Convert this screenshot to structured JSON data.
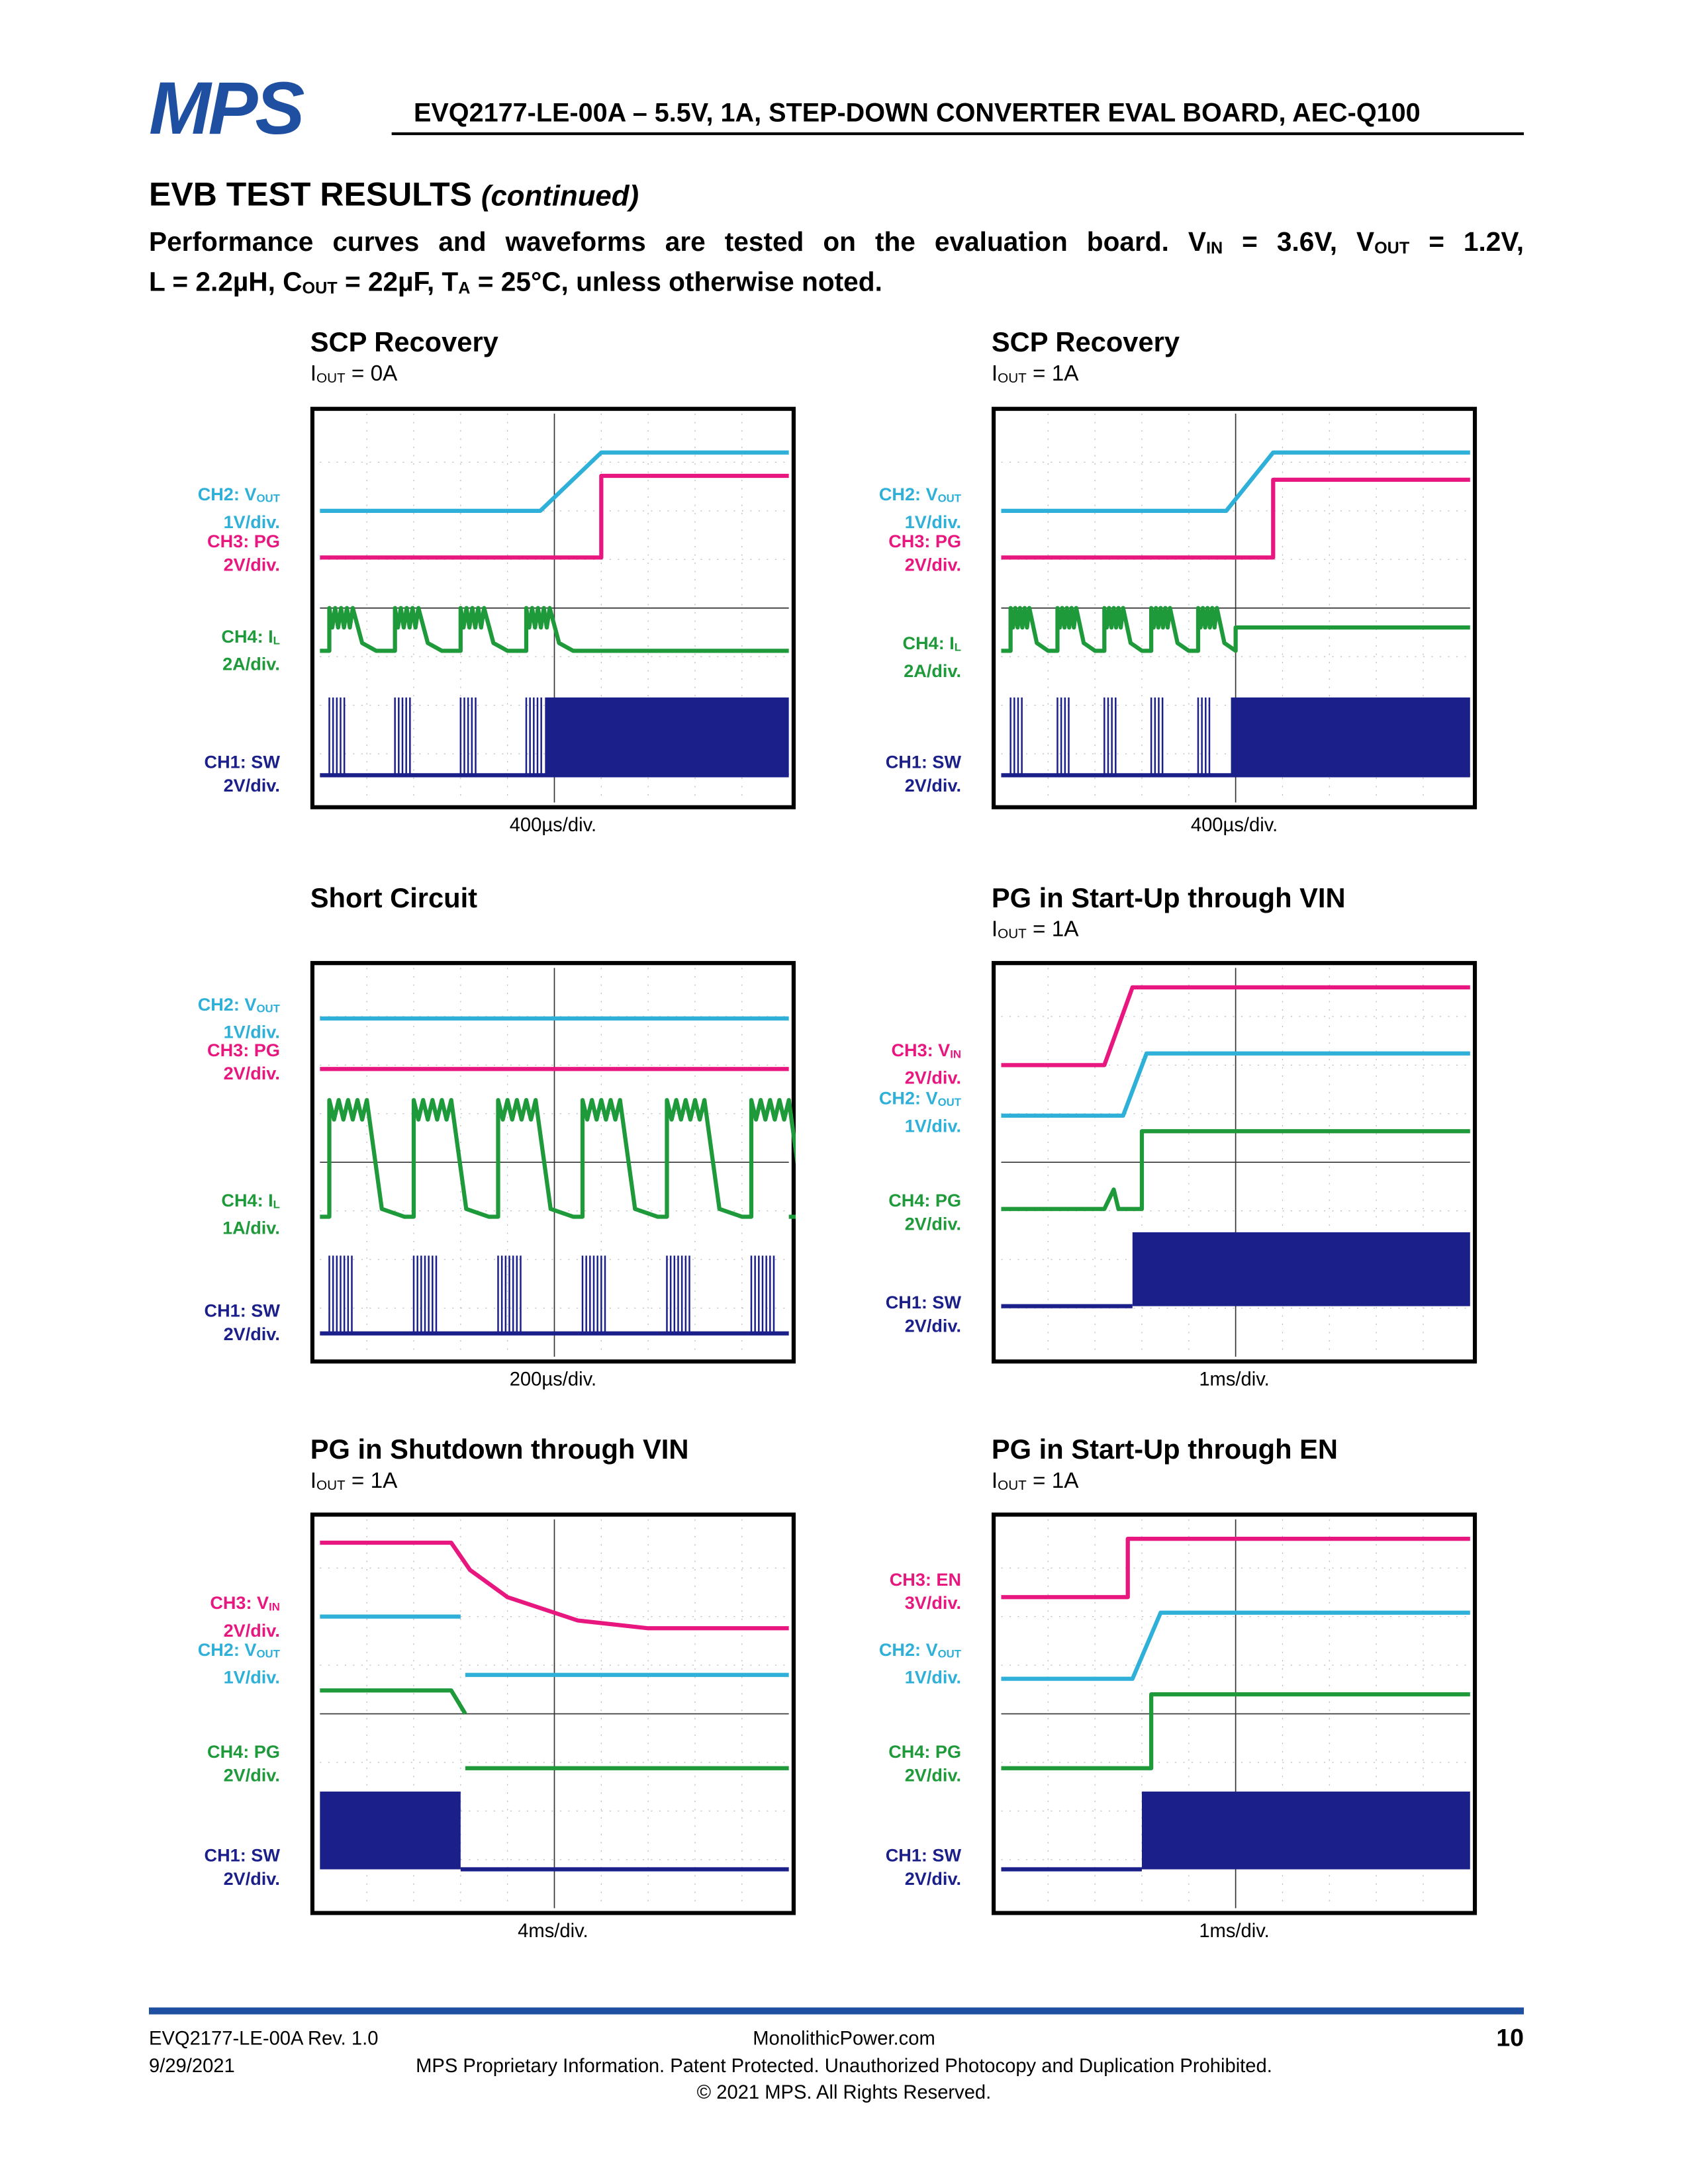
{
  "header": {
    "logo": "MPS",
    "title": "EVQ2177-LE-00A – 5.5V, 1A, STEP-DOWN CONVERTER EVAL BOARD, AEC-Q100"
  },
  "section": {
    "title": "EVB TEST RESULTS",
    "note": "(continued)"
  },
  "intro": {
    "lines": [
      [
        {
          "text": "Performance curves and waveforms are tested on the evaluation board. V"
        },
        {
          "sub": "IN"
        },
        {
          "text": " = 3.6V, V"
        },
        {
          "sub": "OUT"
        },
        {
          "text": " = 1.2V,"
        }
      ],
      [
        {
          "text": "L = 2.2µH, C"
        },
        {
          "sub": "OUT"
        },
        {
          "text": " = 22µF, T"
        },
        {
          "sub": "A"
        },
        {
          "text": " = 25°C, unless otherwise noted."
        }
      ]
    ]
  },
  "plots": [
    {
      "title": "SCP Recovery",
      "condition": [
        {
          "text": "I"
        },
        {
          "sub": "OUT"
        },
        {
          "text": " = 0A"
        }
      ],
      "timebase": "400µs/div.",
      "channels": [
        {
          "name": [
            {
              "text": "CH2: V"
            },
            {
              "sub": "OUT"
            }
          ],
          "scale": "1V/div.",
          "color": "#2fb0d8"
        },
        {
          "name": [
            {
              "text": "CH3: PG"
            }
          ],
          "scale": "2V/div.",
          "color": "#e8177f"
        },
        {
          "name": [
            {
              "text": "CH4: I"
            },
            {
              "sub": "L"
            }
          ],
          "scale": "2A/div.",
          "color": "#1e9a3a"
        },
        {
          "name": [
            {
              "text": "CH1: SW"
            }
          ],
          "scale": "2V/div.",
          "color": "#1b1f8a"
        }
      ]
    },
    {
      "title": "SCP Recovery",
      "condition": [
        {
          "text": "I"
        },
        {
          "sub": "OUT"
        },
        {
          "text": " = 1A"
        }
      ],
      "timebase": "400µs/div.",
      "channels": [
        {
          "name": [
            {
              "text": "CH2: V"
            },
            {
              "sub": "OUT"
            }
          ],
          "scale": "1V/div.",
          "color": "#2fb0d8"
        },
        {
          "name": [
            {
              "text": "CH3: PG"
            }
          ],
          "scale": "2V/div.",
          "color": "#e8177f"
        },
        {
          "name": [
            {
              "text": "CH4: I"
            },
            {
              "sub": "L"
            }
          ],
          "scale": "2A/div.",
          "color": "#1e9a3a"
        },
        {
          "name": [
            {
              "text": "CH1: SW"
            }
          ],
          "scale": "2V/div.",
          "color": "#1b1f8a"
        }
      ]
    },
    {
      "title": "Short Circuit",
      "condition": [],
      "timebase": "200µs/div.",
      "channels": [
        {
          "name": [
            {
              "text": "CH2: V"
            },
            {
              "sub": "OUT"
            }
          ],
          "scale": "1V/div.",
          "color": "#2fb0d8"
        },
        {
          "name": [
            {
              "text": "CH3: PG"
            }
          ],
          "scale": "2V/div.",
          "color": "#e8177f"
        },
        {
          "name": [
            {
              "text": "CH4: I"
            },
            {
              "sub": "L"
            }
          ],
          "scale": "1A/div.",
          "color": "#1e9a3a"
        },
        {
          "name": [
            {
              "text": "CH1: SW"
            }
          ],
          "scale": "2V/div.",
          "color": "#1b1f8a"
        }
      ]
    },
    {
      "title": "PG in Start-Up through VIN",
      "condition": [
        {
          "text": "I"
        },
        {
          "sub": "OUT"
        },
        {
          "text": " = 1A"
        }
      ],
      "timebase": "1ms/div.",
      "channels": [
        {
          "name": [
            {
              "text": "CH3: V"
            },
            {
              "sub": "IN"
            }
          ],
          "scale": "2V/div.",
          "color": "#e8177f"
        },
        {
          "name": [
            {
              "text": "CH2: V"
            },
            {
              "sub": "OUT"
            }
          ],
          "scale": "1V/div.",
          "color": "#2fb0d8"
        },
        {
          "name": [
            {
              "text": "CH4: PG"
            }
          ],
          "scale": "2V/div.",
          "color": "#1e9a3a"
        },
        {
          "name": [
            {
              "text": "CH1: SW"
            }
          ],
          "scale": "2V/div.",
          "color": "#1b1f8a"
        }
      ]
    },
    {
      "title": "PG in Shutdown through VIN",
      "condition": [
        {
          "text": "I"
        },
        {
          "sub": "OUT"
        },
        {
          "text": " = 1A"
        }
      ],
      "timebase": "4ms/div.",
      "channels": [
        {
          "name": [
            {
              "text": "CH3: V"
            },
            {
              "sub": "IN"
            }
          ],
          "scale": "2V/div.",
          "color": "#e8177f"
        },
        {
          "name": [
            {
              "text": "CH2: V"
            },
            {
              "sub": "OUT"
            }
          ],
          "scale": "1V/div.",
          "color": "#2fb0d8"
        },
        {
          "name": [
            {
              "text": "CH4: PG"
            }
          ],
          "scale": "2V/div.",
          "color": "#1e9a3a"
        },
        {
          "name": [
            {
              "text": "CH1: SW"
            }
          ],
          "scale": "2V/div.",
          "color": "#1b1f8a"
        }
      ]
    },
    {
      "title": "PG in Start-Up through EN",
      "condition": [
        {
          "text": "I"
        },
        {
          "sub": "OUT"
        },
        {
          "text": " = 1A"
        }
      ],
      "timebase": "1ms/div.",
      "channels": [
        {
          "name": [
            {
              "text": "CH3: EN"
            }
          ],
          "scale": "3V/div.",
          "color": "#e8177f"
        },
        {
          "name": [
            {
              "text": "CH2: V"
            },
            {
              "sub": "OUT"
            }
          ],
          "scale": "1V/div.",
          "color": "#2fb0d8"
        },
        {
          "name": [
            {
              "text": "CH4: PG"
            }
          ],
          "scale": "2V/div.",
          "color": "#1e9a3a"
        },
        {
          "name": [
            {
              "text": "CH1: SW"
            }
          ],
          "scale": "2V/div.",
          "color": "#1b1f8a"
        }
      ]
    }
  ],
  "footer": {
    "doc": "EVQ2177-LE-00A Rev. 1.0",
    "date": "9/29/2021",
    "site": "MonolithicPower.com",
    "notice": "MPS Proprietary Information. Patent Protected. Unauthorized Photocopy and Duplication Prohibited.",
    "copyright": "© 2021 MPS. All Rights Reserved.",
    "page": "10"
  }
}
